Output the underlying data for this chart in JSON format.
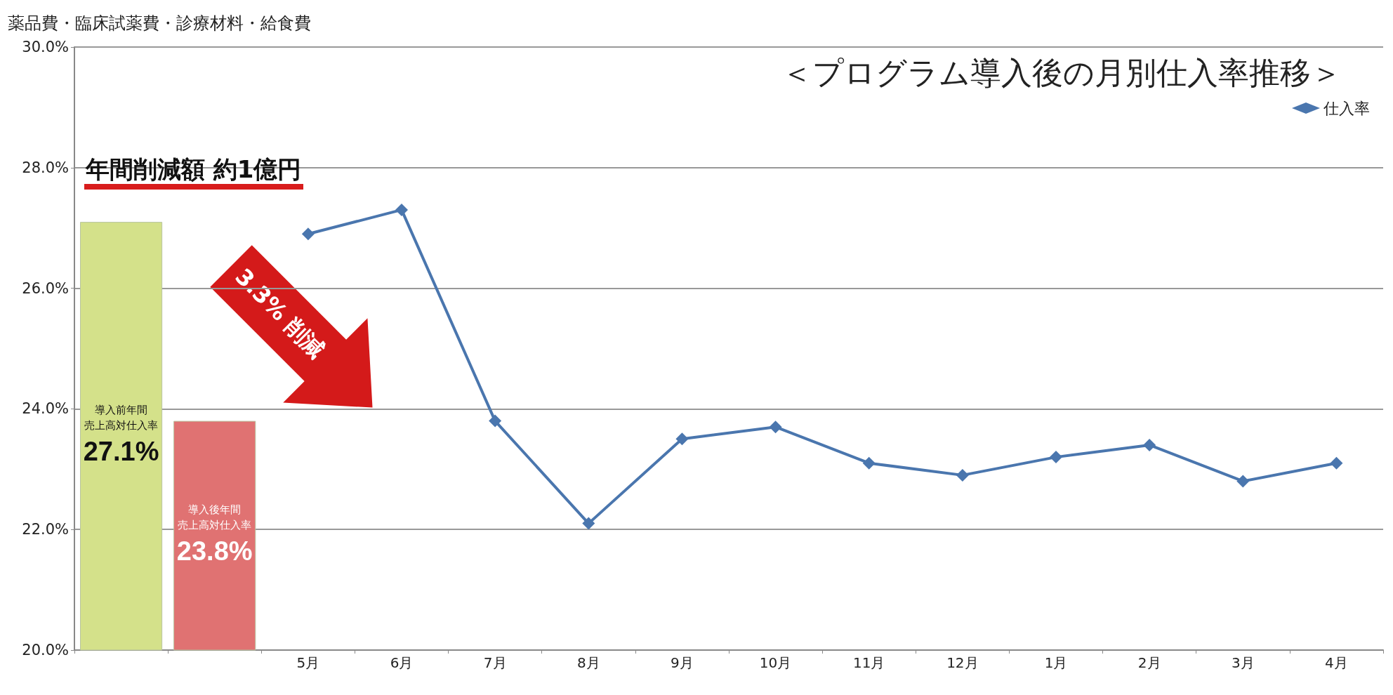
{
  "chart_data": {
    "type": "bar",
    "title": "＜プログラム導入後の月別仕入率推移＞",
    "ylabel": "薬品費・臨床試薬費・診療材料・給食費",
    "annotations": [
      "導入前年間",
      "売上高対仕入率",
      "導入後年間",
      "売上高対仕入率",
      "年間削減額 約1億円",
      "3.3% 削減"
    ],
    "categories": [
      null,
      null,
      "5月",
      "6月",
      "7月",
      "8月",
      "9月",
      "10月",
      "11月",
      "12月",
      "1月",
      "2月",
      "3月",
      "4月"
    ],
    "series": [
      {
        "colors": [
          "#d4e18a",
          "#e07272",
          null,
          null,
          null,
          null,
          null,
          null,
          null,
          null,
          null,
          null,
          null,
          null
        ],
        "values": [
          27.1,
          23.8,
          null,
          null,
          null,
          null,
          null,
          null,
          null,
          null,
          null,
          null,
          null,
          null
        ],
        "value_labels": [
          "27.1%",
          "23.8%",
          null,
          null,
          null,
          null,
          null,
          null,
          null,
          null,
          null,
          null,
          null,
          null
        ]
      },
      {
        "type": "line",
        "name": "仕入率",
        "color": "#4a76ae",
        "values": [
          null,
          null,
          26.9,
          27.3,
          23.8,
          22.1,
          23.5,
          23.7,
          23.1,
          22.9,
          23.2,
          23.4,
          22.8,
          23.1
        ]
      }
    ],
    "ylim": [
      20,
      30
    ],
    "yticks": [
      {
        "value": 20,
        "label": "20.0%"
      },
      {
        "value": 22,
        "label": "22.0%"
      },
      {
        "value": 24,
        "label": "24.0%"
      },
      {
        "value": 26,
        "label": "26.0%"
      },
      {
        "value": 28,
        "label": "28.0%"
      },
      {
        "value": 30,
        "label": "30.0%"
      }
    ],
    "grid": "y",
    "legend": "top right",
    "marker": "diamond",
    "line_style": "solid"
  }
}
